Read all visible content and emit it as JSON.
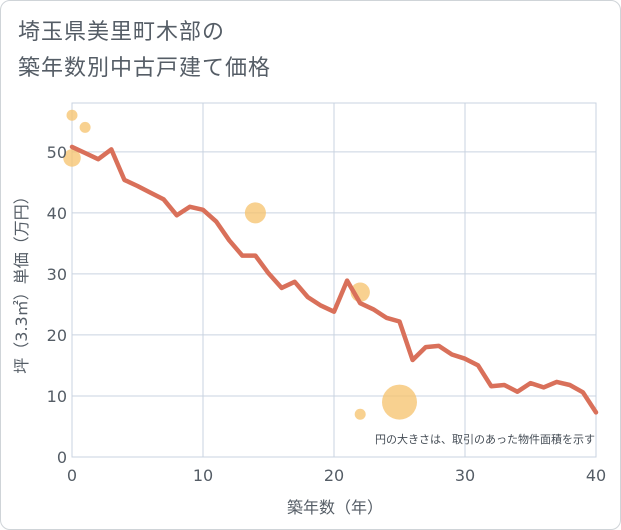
{
  "title_lines": [
    "埼玉県美里町木部の",
    "築年数別中古戸建て価格"
  ],
  "chart_data": {
    "type": "line",
    "xlabel": "築年数（年）",
    "ylabel": "坪（3.3㎡）単価（万円）",
    "xlim": [
      0,
      40
    ],
    "ylim": [
      0,
      58
    ],
    "x_ticks": [
      0,
      10,
      20,
      30,
      40
    ],
    "y_ticks": [
      0,
      10,
      20,
      30,
      40,
      50
    ],
    "grid": true,
    "annotation": "円の大きさは、取引のあった物件面積を示す",
    "colors": {
      "line": "#d9705a",
      "bubble": "#f5c26b",
      "grid": "#c9d3e0"
    },
    "series": [
      {
        "type": "line",
        "x": [
          0,
          1,
          2,
          3,
          4,
          5,
          6,
          7,
          8,
          9,
          10,
          11,
          12,
          13,
          14,
          15,
          16,
          17,
          18,
          19,
          20,
          21,
          22,
          23,
          24,
          25,
          26,
          27,
          28,
          29,
          30,
          31,
          32,
          33,
          34,
          35,
          36,
          37,
          38,
          39,
          40
        ],
        "values": [
          50.8,
          49.8,
          48.8,
          50.4,
          45.4,
          44.4,
          43.3,
          42.2,
          39.6,
          41.0,
          40.5,
          38.6,
          35.5,
          33.0,
          33.0,
          30.1,
          27.7,
          28.7,
          26.2,
          24.8,
          23.8,
          28.9,
          25.2,
          24.2,
          22.8,
          22.2,
          15.9,
          18.0,
          18.2,
          16.8,
          16.1,
          15.0,
          11.6,
          11.8,
          10.7,
          12.1,
          11.4,
          12.3,
          11.8,
          10.6,
          7.3
        ]
      },
      {
        "type": "scatter",
        "points": [
          {
            "x": 0,
            "y": 56,
            "size": 1
          },
          {
            "x": 0,
            "y": 49,
            "size": 2
          },
          {
            "x": 1,
            "y": 54,
            "size": 1
          },
          {
            "x": 14,
            "y": 40,
            "size": 3
          },
          {
            "x": 22,
            "y": 27,
            "size": 2.5
          },
          {
            "x": 22,
            "y": 7,
            "size": 1
          },
          {
            "x": 25,
            "y": 9,
            "size": 9
          }
        ]
      }
    ]
  }
}
